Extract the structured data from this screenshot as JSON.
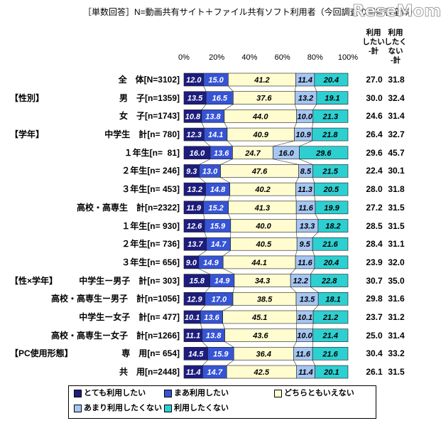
{
  "watermark": "ReseMom",
  "chart_data": {
    "type": "bar",
    "orientation": "horizontal",
    "stacking": "percent",
    "title": "［単数回答］N=動画共有サイト＋ファイル共有ソフト利用者（今回調査の回答者全体）",
    "xlim": [
      0,
      100
    ],
    "x_ticks": [
      "0%",
      "20%",
      "40%",
      "60%",
      "80%",
      "100%"
    ],
    "grid": false,
    "legend_placement": "bottom",
    "rows": [
      {
        "label": "全　体",
        "n": "[N=3102]"
      },
      {
        "group": "【性別】",
        "label": "男　子",
        "n": "[n=1359]"
      },
      {
        "label": "女　子",
        "n": "[n=1743]"
      },
      {
        "group": "【学年】",
        "label": "中学生　計",
        "n": "[n= 780]"
      },
      {
        "label": "１年生",
        "n": "[n=  81]"
      },
      {
        "label": "２年生",
        "n": "[n= 246]"
      },
      {
        "label": "３年生",
        "n": "[n= 453]"
      },
      {
        "label": "高校・高専生　計",
        "n": "[n=2322]"
      },
      {
        "label": "１年生",
        "n": "[n= 930]"
      },
      {
        "label": "２年生",
        "n": "[n= 736]"
      },
      {
        "label": "３年生",
        "n": "[n= 656]"
      },
      {
        "group": "【性×学年】",
        "label": "中学生ー男子　計",
        "n": "[n= 303]"
      },
      {
        "label": "高校・高専生ー男子　計",
        "n": "[n=1056]"
      },
      {
        "label": "中学生ー女子　計",
        "n": "[n= 477]"
      },
      {
        "label": "高校・高専生ー女子　計",
        "n": "[n=1266]"
      },
      {
        "group": "【PC使用形態】",
        "label": "専　用",
        "n": "[n= 654]"
      },
      {
        "label": "共　用",
        "n": "[n=2448]"
      }
    ],
    "series": [
      {
        "name": "とても利用したい",
        "color": "#1d1d7e",
        "label_color": "#ffffff",
        "values": [
          12.0,
          13.5,
          10.8,
          12.3,
          16.0,
          9.3,
          13.2,
          11.9,
          12.6,
          13.7,
          9.0,
          15.8,
          12.9,
          10.1,
          11.1,
          14.5,
          11.4
        ]
      },
      {
        "name": "まあ利用したい",
        "color": "#3654d4",
        "label_color": "#ffffff",
        "values": [
          15.0,
          16.5,
          13.8,
          14.1,
          13.6,
          13.0,
          14.8,
          15.2,
          15.9,
          14.7,
          14.9,
          14.9,
          17.0,
          13.6,
          13.8,
          15.9,
          14.7
        ]
      },
      {
        "name": "どちらともいえない",
        "color": "#fffcd0",
        "label_color": "#000000",
        "values": [
          41.2,
          37.6,
          44.0,
          40.9,
          24.7,
          47.6,
          40.2,
          41.3,
          40.0,
          40.5,
          44.1,
          34.3,
          38.5,
          45.1,
          43.6,
          36.4,
          42.5
        ]
      },
      {
        "name": "あまり利用したくない",
        "color": "#a6c6f2",
        "label_color": "#000000",
        "values": [
          11.4,
          13.2,
          10.0,
          10.9,
          16.0,
          8.5,
          11.3,
          11.6,
          13.3,
          9.5,
          11.6,
          12.2,
          13.5,
          10.1,
          10.0,
          11.6,
          11.4
        ]
      },
      {
        "name": "利用したくない",
        "color": "#2ecfd0",
        "label_color": "#000000",
        "values": [
          20.4,
          19.1,
          21.3,
          21.8,
          29.6,
          21.5,
          20.5,
          19.9,
          18.2,
          21.6,
          20.4,
          22.8,
          18.1,
          21.2,
          21.4,
          21.6,
          20.1
        ]
      }
    ],
    "total_columns": [
      {
        "name": "利用\nしたい\n-計",
        "values": [
          27.0,
          30.0,
          24.6,
          26.4,
          29.6,
          22.4,
          28.0,
          27.2,
          28.5,
          28.4,
          23.9,
          30.7,
          29.8,
          23.7,
          25.0,
          30.4,
          26.1
        ]
      },
      {
        "name": "利用\nしたく\nない\n-計",
        "values": [
          31.8,
          32.4,
          31.4,
          32.7,
          45.7,
          30.1,
          31.8,
          31.5,
          31.5,
          31.1,
          32.0,
          35.0,
          31.6,
          31.2,
          31.4,
          33.2,
          31.5
        ]
      }
    ]
  }
}
